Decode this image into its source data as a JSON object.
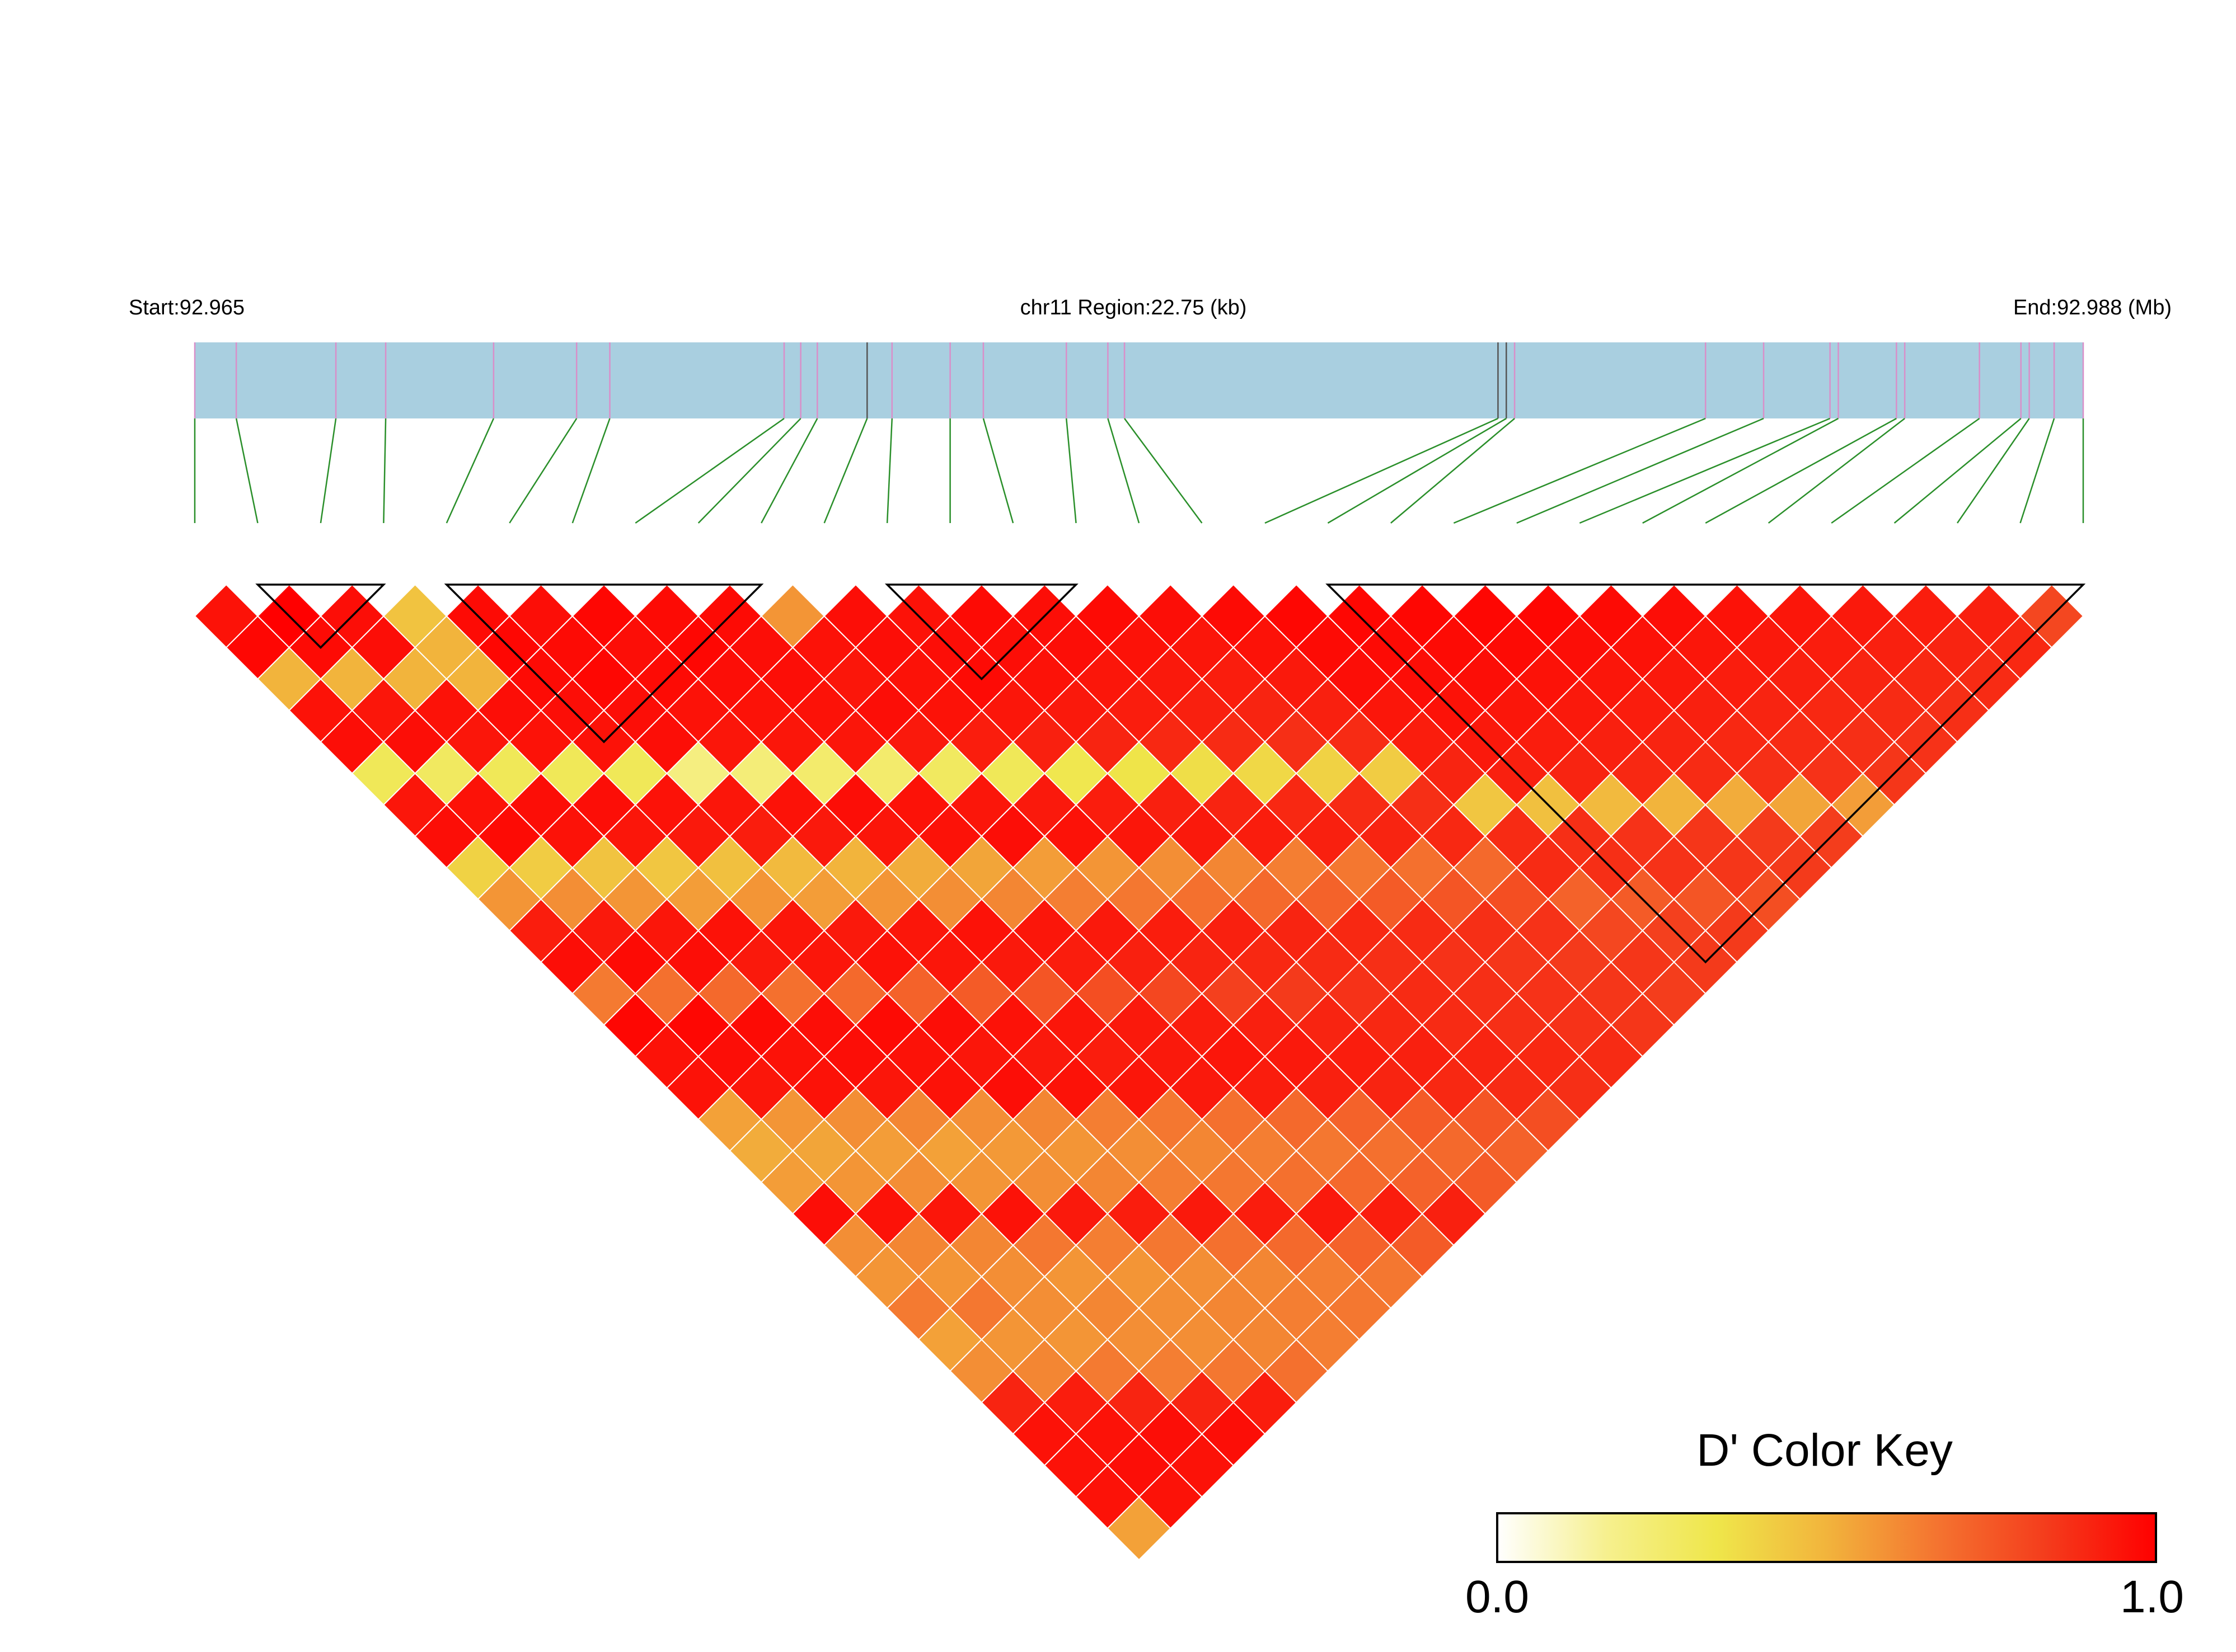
{
  "chart_data": {
    "type": "heatmap",
    "subtype": "linkage-disequilibrium-triangle",
    "header": {
      "start_label": "Start:92.965",
      "region_label": "chr11 Region:22.75 (kb)",
      "end_label": "End:92.988 (Mb)"
    },
    "region": {
      "chromosome": "chr11",
      "start_mb": 92.965,
      "end_mb": 92.988,
      "length_kb": 22.75
    },
    "n_snps": 31,
    "snp_positions_kb": [
      0.0,
      0.5,
      1.7,
      2.3,
      3.6,
      4.6,
      5.0,
      7.1,
      7.3,
      7.5,
      8.1,
      8.4,
      9.1,
      9.5,
      10.5,
      11.0,
      11.2,
      15.7,
      15.8,
      15.9,
      18.2,
      18.9,
      19.7,
      19.8,
      20.5,
      20.6,
      21.5,
      22.0,
      22.1,
      22.4,
      22.75
    ],
    "color_key": {
      "title": "D' Color Key",
      "min_label": "0.0",
      "max_label": "1.0",
      "stops": [
        "#ffffff",
        "#f6f08e",
        "#efe64a",
        "#f2b43c",
        "#f47430",
        "#f43c1c",
        "#ff0000"
      ]
    },
    "colors": {
      "track_fill": "#a9cfe0",
      "snp_tick": "#d98fc9",
      "snp_tick_dark": "#555555",
      "connector": "#2a8f2a",
      "cell_border": "#ffffff",
      "block_outline": "#000000"
    },
    "haplotype_blocks": [
      [
        1,
        3
      ],
      [
        4,
        9
      ],
      [
        11,
        14
      ],
      [
        18,
        30
      ]
    ],
    "d_prime_matrix": [
      [
        1.0,
        0.95,
        0.98,
        0.5,
        0.95,
        0.96,
        0.3,
        0.94,
        0.96,
        0.4,
        0.58,
        0.92,
        0.96,
        0.65,
        0.98,
        0.95,
        0.95,
        0.55,
        0.52,
        0.56,
        0.96,
        0.6,
        0.58,
        0.65,
        0.55,
        0.6,
        0.9,
        0.95,
        0.95,
        0.95,
        0.55
      ],
      [
        0.95,
        1.0,
        1.0,
        0.97,
        0.5,
        0.94,
        0.96,
        0.28,
        0.95,
        0.97,
        0.42,
        0.6,
        0.93,
        0.97,
        0.68,
        0.98,
        0.96,
        0.94,
        0.58,
        0.54,
        0.58,
        0.95,
        0.62,
        0.58,
        0.66,
        0.58,
        0.62,
        0.92,
        0.95,
        0.96,
        0.95
      ],
      [
        0.98,
        1.0,
        1.0,
        0.96,
        0.96,
        0.5,
        0.95,
        0.94,
        0.3,
        0.96,
        0.95,
        0.45,
        0.58,
        0.94,
        0.96,
        0.7,
        0.97,
        0.95,
        0.95,
        0.6,
        0.56,
        0.6,
        0.94,
        0.62,
        0.6,
        0.6,
        0.58,
        0.65,
        0.9,
        0.96,
        0.95
      ],
      [
        0.5,
        0.97,
        0.96,
        1.0,
        0.45,
        0.5,
        0.5,
        0.96,
        0.95,
        0.3,
        0.96,
        0.94,
        0.44,
        0.56,
        0.95,
        0.93,
        0.68,
        0.96,
        0.96,
        0.94,
        0.62,
        0.55,
        0.58,
        0.95,
        0.66,
        0.58,
        0.62,
        0.6,
        0.64,
        0.9,
        0.96
      ],
      [
        0.95,
        0.5,
        0.96,
        0.45,
        1.0,
        0.97,
        0.98,
        0.97,
        0.96,
        0.95,
        0.3,
        0.95,
        0.93,
        0.46,
        0.58,
        0.94,
        0.94,
        0.7,
        0.97,
        0.95,
        0.95,
        0.6,
        0.57,
        0.6,
        0.93,
        0.64,
        0.58,
        0.6,
        0.6,
        0.66,
        0.92
      ],
      [
        0.96,
        0.94,
        0.5,
        0.5,
        0.97,
        1.0,
        0.96,
        0.97,
        0.98,
        0.96,
        0.96,
        0.2,
        0.94,
        0.92,
        0.48,
        0.56,
        0.93,
        0.95,
        0.72,
        0.96,
        0.94,
        0.96,
        0.62,
        0.58,
        0.62,
        0.92,
        0.66,
        0.6,
        0.62,
        0.62,
        0.68
      ],
      [
        0.3,
        0.96,
        0.95,
        0.5,
        0.98,
        0.96,
        1.0,
        0.98,
        0.96,
        0.97,
        0.95,
        0.94,
        0.22,
        0.95,
        0.93,
        0.5,
        0.58,
        0.94,
        0.94,
        0.74,
        0.95,
        0.93,
        0.95,
        0.64,
        0.6,
        0.64,
        0.93,
        0.68,
        0.62,
        0.64,
        0.64
      ],
      [
        0.94,
        0.28,
        0.94,
        0.96,
        0.97,
        0.97,
        0.98,
        1.0,
        0.97,
        0.98,
        0.96,
        0.95,
        0.94,
        0.25,
        0.96,
        0.94,
        0.52,
        0.6,
        0.95,
        0.93,
        0.76,
        0.94,
        0.92,
        0.94,
        0.66,
        0.62,
        0.66,
        0.92,
        0.7,
        0.64,
        0.66
      ],
      [
        0.96,
        0.95,
        0.3,
        0.95,
        0.96,
        0.98,
        0.96,
        0.97,
        1.0,
        0.97,
        0.96,
        0.96,
        0.95,
        0.94,
        0.25,
        0.95,
        0.95,
        0.54,
        0.62,
        0.94,
        0.92,
        0.78,
        0.93,
        0.93,
        0.93,
        0.68,
        0.64,
        0.68,
        0.93,
        0.72,
        0.66
      ],
      [
        0.4,
        0.97,
        0.96,
        0.3,
        0.95,
        0.96,
        0.97,
        0.98,
        0.97,
        1.0,
        0.58,
        0.95,
        0.94,
        0.96,
        0.93,
        0.28,
        0.94,
        0.96,
        0.56,
        0.64,
        0.93,
        0.91,
        0.8,
        0.92,
        0.94,
        0.92,
        0.7,
        0.66,
        0.7,
        0.92,
        0.74
      ],
      [
        0.58,
        0.42,
        0.95,
        0.96,
        0.3,
        0.96,
        0.95,
        0.96,
        0.96,
        0.58,
        1.0,
        0.96,
        0.96,
        0.95,
        0.95,
        0.92,
        0.3,
        0.93,
        0.95,
        0.58,
        0.66,
        0.92,
        0.9,
        0.82,
        0.91,
        0.93,
        0.91,
        0.72,
        0.68,
        0.72,
        0.91
      ],
      [
        0.92,
        0.6,
        0.45,
        0.94,
        0.95,
        0.2,
        0.94,
        0.95,
        0.96,
        0.95,
        0.96,
        1.0,
        0.95,
        0.96,
        0.97,
        0.94,
        0.91,
        0.32,
        0.92,
        0.94,
        0.6,
        0.68,
        0.91,
        0.89,
        0.84,
        0.9,
        0.92,
        0.9,
        0.74,
        0.7,
        0.74
      ],
      [
        0.96,
        0.93,
        0.58,
        0.44,
        0.93,
        0.94,
        0.22,
        0.94,
        0.95,
        0.94,
        0.96,
        0.95,
        1.0,
        0.97,
        0.96,
        0.95,
        0.93,
        0.9,
        0.34,
        0.91,
        0.93,
        0.62,
        0.7,
        0.9,
        0.88,
        0.86,
        0.89,
        0.91,
        0.89,
        0.76,
        0.72
      ],
      [
        0.65,
        0.97,
        0.94,
        0.56,
        0.46,
        0.92,
        0.95,
        0.25,
        0.94,
        0.96,
        0.95,
        0.96,
        0.97,
        1.0,
        0.96,
        0.96,
        0.94,
        0.92,
        0.89,
        0.36,
        0.9,
        0.92,
        0.64,
        0.72,
        0.89,
        0.87,
        0.88,
        0.88,
        0.9,
        0.88,
        0.78
      ],
      [
        0.98,
        0.68,
        0.96,
        0.95,
        0.58,
        0.48,
        0.93,
        0.96,
        0.25,
        0.93,
        0.95,
        0.97,
        0.96,
        0.96,
        1.0,
        0.97,
        0.95,
        0.93,
        0.91,
        0.88,
        0.38,
        0.89,
        0.91,
        0.66,
        0.74,
        0.88,
        0.86,
        0.87,
        0.87,
        0.89,
        0.87
      ],
      [
        0.95,
        0.98,
        0.7,
        0.93,
        0.94,
        0.56,
        0.5,
        0.94,
        0.95,
        0.28,
        0.92,
        0.94,
        0.95,
        0.96,
        0.97,
        1.0,
        0.96,
        0.94,
        0.92,
        0.9,
        0.87,
        0.4,
        0.88,
        0.9,
        0.68,
        0.76,
        0.87,
        0.85,
        0.86,
        0.86,
        0.88
      ],
      [
        0.95,
        0.96,
        0.97,
        0.68,
        0.94,
        0.93,
        0.58,
        0.52,
        0.95,
        0.94,
        0.3,
        0.91,
        0.93,
        0.94,
        0.95,
        0.96,
        1.0,
        0.97,
        0.95,
        0.93,
        0.91,
        0.88,
        0.42,
        0.87,
        0.89,
        0.7,
        0.78,
        0.86,
        0.84,
        0.85,
        0.85
      ],
      [
        0.55,
        0.94,
        0.95,
        0.96,
        0.7,
        0.95,
        0.94,
        0.6,
        0.54,
        0.96,
        0.93,
        0.32,
        0.9,
        0.92,
        0.93,
        0.94,
        0.97,
        1.0,
        0.98,
        0.97,
        0.96,
        0.94,
        0.92,
        0.9,
        0.44,
        0.88,
        0.88,
        0.72,
        0.8,
        0.85,
        0.83
      ],
      [
        0.52,
        0.58,
        0.95,
        0.96,
        0.97,
        0.72,
        0.94,
        0.95,
        0.62,
        0.56,
        0.95,
        0.92,
        0.34,
        0.89,
        0.91,
        0.92,
        0.95,
        0.98,
        1.0,
        0.98,
        0.97,
        0.96,
        0.95,
        0.93,
        0.91,
        0.46,
        0.87,
        0.87,
        0.74,
        0.82,
        0.84
      ],
      [
        0.56,
        0.54,
        0.6,
        0.94,
        0.95,
        0.96,
        0.74,
        0.93,
        0.94,
        0.64,
        0.58,
        0.94,
        0.91,
        0.36,
        0.88,
        0.9,
        0.93,
        0.97,
        0.98,
        1.0,
        0.98,
        0.97,
        0.96,
        0.94,
        0.92,
        0.9,
        0.48,
        0.86,
        0.86,
        0.76,
        0.84
      ],
      [
        0.96,
        0.58,
        0.56,
        0.62,
        0.95,
        0.94,
        0.95,
        0.76,
        0.92,
        0.93,
        0.66,
        0.6,
        0.93,
        0.9,
        0.38,
        0.87,
        0.91,
        0.96,
        0.97,
        0.98,
        1.0,
        0.98,
        0.97,
        0.95,
        0.93,
        0.91,
        0.89,
        0.5,
        0.85,
        0.85,
        0.78
      ],
      [
        0.6,
        0.95,
        0.6,
        0.55,
        0.6,
        0.96,
        0.93,
        0.94,
        0.78,
        0.91,
        0.92,
        0.68,
        0.62,
        0.92,
        0.89,
        0.4,
        0.88,
        0.94,
        0.96,
        0.97,
        0.98,
        1.0,
        0.98,
        0.96,
        0.94,
        0.92,
        0.9,
        0.88,
        0.52,
        0.84,
        0.84
      ],
      [
        0.58,
        0.62,
        0.94,
        0.58,
        0.57,
        0.62,
        0.95,
        0.92,
        0.93,
        0.8,
        0.9,
        0.91,
        0.7,
        0.64,
        0.91,
        0.88,
        0.42,
        0.92,
        0.95,
        0.96,
        0.97,
        0.98,
        1.0,
        0.97,
        0.95,
        0.93,
        0.91,
        0.89,
        0.87,
        0.54,
        0.83
      ],
      [
        0.65,
        0.58,
        0.62,
        0.95,
        0.6,
        0.58,
        0.64,
        0.94,
        0.93,
        0.92,
        0.82,
        0.89,
        0.9,
        0.72,
        0.66,
        0.9,
        0.87,
        0.9,
        0.93,
        0.94,
        0.95,
        0.96,
        0.97,
        1.0,
        0.96,
        0.94,
        0.92,
        0.9,
        0.88,
        0.86,
        0.56
      ],
      [
        0.55,
        0.66,
        0.6,
        0.66,
        0.93,
        0.62,
        0.6,
        0.66,
        0.93,
        0.94,
        0.91,
        0.84,
        0.88,
        0.89,
        0.74,
        0.68,
        0.89,
        0.44,
        0.91,
        0.92,
        0.93,
        0.94,
        0.95,
        0.96,
        1.0,
        0.95,
        0.93,
        0.91,
        0.89,
        0.87,
        0.85
      ],
      [
        0.6,
        0.58,
        0.6,
        0.58,
        0.64,
        0.92,
        0.64,
        0.62,
        0.68,
        0.92,
        0.93,
        0.9,
        0.86,
        0.87,
        0.88,
        0.76,
        0.7,
        0.88,
        0.46,
        0.9,
        0.91,
        0.92,
        0.93,
        0.94,
        0.95,
        1.0,
        0.94,
        0.92,
        0.9,
        0.88,
        0.86
      ],
      [
        0.9,
        0.62,
        0.58,
        0.62,
        0.58,
        0.66,
        0.93,
        0.66,
        0.64,
        0.7,
        0.91,
        0.92,
        0.89,
        0.88,
        0.86,
        0.87,
        0.78,
        0.88,
        0.87,
        0.48,
        0.89,
        0.9,
        0.91,
        0.92,
        0.93,
        0.94,
        1.0,
        0.93,
        0.91,
        0.89,
        0.87
      ],
      [
        0.95,
        0.92,
        0.65,
        0.6,
        0.6,
        0.6,
        0.68,
        0.92,
        0.68,
        0.66,
        0.72,
        0.9,
        0.91,
        0.88,
        0.87,
        0.85,
        0.86,
        0.72,
        0.87,
        0.86,
        0.5,
        0.88,
        0.89,
        0.9,
        0.91,
        0.92,
        0.93,
        1.0,
        0.92,
        0.9,
        0.88
      ],
      [
        0.95,
        0.95,
        0.9,
        0.64,
        0.6,
        0.62,
        0.62,
        0.7,
        0.93,
        0.7,
        0.68,
        0.74,
        0.89,
        0.9,
        0.87,
        0.86,
        0.84,
        0.8,
        0.74,
        0.86,
        0.85,
        0.52,
        0.87,
        0.88,
        0.89,
        0.9,
        0.91,
        0.92,
        1.0,
        0.91,
        0.89
      ],
      [
        0.95,
        0.96,
        0.96,
        0.9,
        0.66,
        0.62,
        0.64,
        0.64,
        0.72,
        0.92,
        0.72,
        0.7,
        0.76,
        0.88,
        0.89,
        0.86,
        0.85,
        0.85,
        0.82,
        0.76,
        0.85,
        0.84,
        0.54,
        0.86,
        0.87,
        0.88,
        0.89,
        0.9,
        0.91,
        1.0,
        0.8
      ],
      [
        0.55,
        0.95,
        0.95,
        0.96,
        0.92,
        0.68,
        0.64,
        0.66,
        0.66,
        0.74,
        0.91,
        0.74,
        0.72,
        0.78,
        0.87,
        0.88,
        0.85,
        0.83,
        0.84,
        0.84,
        0.78,
        0.84,
        0.83,
        0.56,
        0.85,
        0.86,
        0.87,
        0.88,
        0.89,
        0.8,
        1.0
      ]
    ]
  }
}
